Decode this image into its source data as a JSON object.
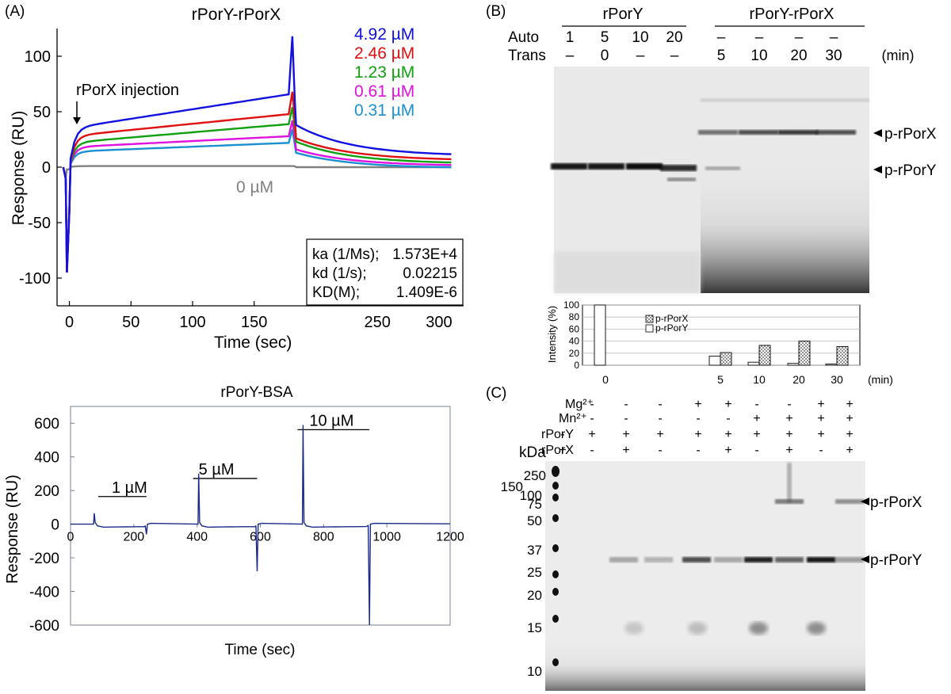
{
  "panelA": {
    "label": "(A)",
    "chart_data": [
      {
        "type": "line",
        "title": "rPorY-rPorX",
        "xlabel": "Time  (sec)",
        "ylabel": "Response (RU)",
        "xlim": [
          -10,
          320
        ],
        "ylim": [
          -125,
          125
        ],
        "xticks": [
          0,
          50,
          100,
          150,
          250,
          300
        ],
        "xtick_labels": [
          "0",
          "50",
          "100",
          "150",
          "250",
          "300"
        ],
        "yticks": [
          -100,
          -50,
          0,
          50,
          100
        ],
        "injection_label": "rPorX injection",
        "series": [
          {
            "name": "4.92 µM",
            "color": "#1010e0",
            "assoc_start": 35,
            "assoc_end": 66,
            "peak": 118,
            "dissoc_drop": 28,
            "dissoc_end": 10
          },
          {
            "name": "2.46 µM",
            "color": "#e01010",
            "assoc_start": 28,
            "assoc_end": 48,
            "peak": 68,
            "dissoc_drop": 22,
            "dissoc_end": 6
          },
          {
            "name": "1.23 µM",
            "color": "#10a010",
            "assoc_start": 22,
            "assoc_end": 39,
            "peak": 54,
            "dissoc_drop": 16,
            "dissoc_end": 3
          },
          {
            "name": "0.61 µM",
            "color": "#e010e0",
            "assoc_start": 18,
            "assoc_end": 28,
            "peak": 42,
            "dissoc_drop": 12,
            "dissoc_end": 1
          },
          {
            "name": "0.31 µM",
            "color": "#1a90d0",
            "assoc_start": 14,
            "assoc_end": 22,
            "peak": 34,
            "dissoc_drop": 9,
            "dissoc_end": -1
          },
          {
            "name": "0 µM",
            "color": "#808080",
            "assoc_start": 1,
            "assoc_end": 1,
            "peak": 1,
            "dissoc_drop": 1,
            "dissoc_end": 0
          }
        ],
        "kinetics": [
          {
            "label": "ka (1/Ms);",
            "value": "1.573E+4"
          },
          {
            "label": "kd (1/s);",
            "value": "0.02215"
          },
          {
            "label": "KD(M);",
            "value": "1.409E-6"
          }
        ]
      },
      {
        "type": "line",
        "title": "rPorY-BSA",
        "xlabel": "Time (sec)",
        "ylabel": "Response (RU)",
        "xlim": [
          0,
          1200
        ],
        "ylim": [
          -600,
          700
        ],
        "xticks": [
          0,
          200,
          400,
          600,
          800,
          1000,
          1200
        ],
        "yticks": [
          -600,
          -400,
          -200,
          0,
          200,
          400,
          600
        ],
        "injections": [
          {
            "label": "1 µM",
            "start": 75,
            "end": 240,
            "spike": 65,
            "neg_spike": -60
          },
          {
            "label": "5 µM",
            "start": 405,
            "end": 590,
            "spike": 300,
            "neg_spike": -280
          },
          {
            "label": "10 µM",
            "start": 735,
            "end": 945,
            "spike": 590,
            "neg_spike": -600
          }
        ],
        "color": "#1a2a8a"
      }
    ]
  },
  "panelB": {
    "label": "(B)",
    "group_labels": [
      "rPorY",
      "rPorY-rPorX"
    ],
    "row_labels": [
      "Auto",
      "Trans"
    ],
    "auto_values": [
      "1",
      "5",
      "10",
      "20",
      "–",
      "–",
      "–",
      "–"
    ],
    "trans_values": [
      "–",
      "0",
      "–",
      "–",
      "5",
      "10",
      "20",
      "30"
    ],
    "unit": "(min)",
    "band_labels": [
      "p-rPorX",
      "p-rPorY"
    ],
    "chart_data": {
      "type": "bar",
      "ylabel": "Intensity (%)",
      "ylim": [
        0,
        100
      ],
      "yticks": [
        0,
        20,
        40,
        60,
        80,
        100
      ],
      "categories": [
        "0",
        "5",
        "10",
        "20",
        "30"
      ],
      "xunit": "(min)",
      "series": [
        {
          "name": "p-rPorY",
          "values": [
            100,
            15,
            5,
            3,
            2
          ]
        },
        {
          "name": "p-rPorX",
          "values": [
            0,
            21,
            33,
            40,
            31
          ]
        }
      ]
    }
  },
  "panelC": {
    "label": "(C)",
    "row_labels": [
      "Mg²⁺",
      "Mn²⁺",
      "rPorY",
      "rPorX"
    ],
    "rows": [
      [
        "-",
        "-",
        "-",
        "-",
        "+",
        "+",
        "-",
        "-",
        "+",
        "+"
      ],
      [
        "-",
        "-",
        "-",
        "-",
        "-",
        "-",
        "+",
        "+",
        "+",
        "+"
      ],
      [
        "-",
        "+",
        "+",
        "+",
        "+",
        "+",
        "+",
        "+",
        "+",
        "+"
      ],
      [
        "+",
        "-",
        "+",
        "-",
        "-",
        "+",
        "-",
        "+",
        "-",
        "+"
      ]
    ],
    "kda_label": "kDa",
    "markers": [
      "250",
      "150",
      "100",
      "75",
      "50",
      "37",
      "25",
      "20",
      "15",
      "10"
    ],
    "band_labels": [
      "p-rPorX",
      "p-rPorY"
    ]
  }
}
